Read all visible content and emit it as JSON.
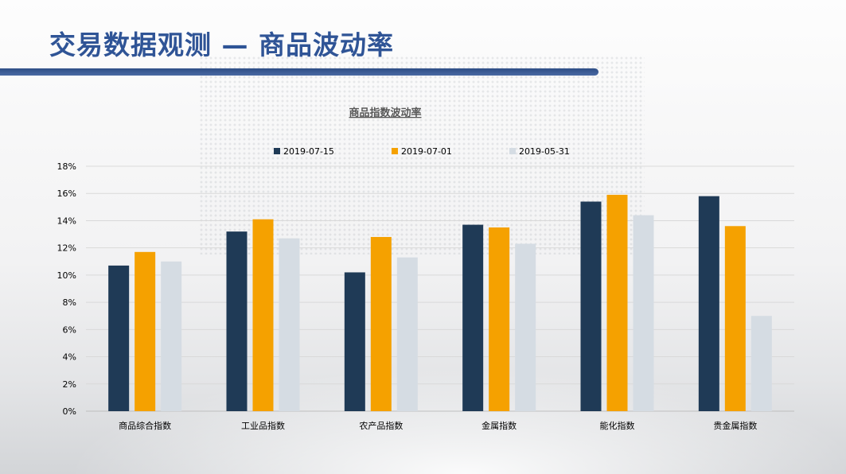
{
  "slide": {
    "title": "交易数据观测 — 商品波动率"
  },
  "colors": {
    "title": "#2f5496",
    "series": [
      "#1f3a56",
      "#f5a100",
      "#d5dce3"
    ],
    "grid": "#d9d9d9",
    "axis_text": "#000000"
  },
  "chart_data": {
    "type": "bar",
    "title": "商品指数波动率",
    "categories": [
      "商品综合指数",
      "工业品指数",
      "农产品指数",
      "金属指数",
      "能化指数",
      "贵金属指数"
    ],
    "series": [
      {
        "name": "2019-07-15",
        "values": [
          10.7,
          13.2,
          10.2,
          13.7,
          15.4,
          15.8
        ]
      },
      {
        "name": "2019-07-01",
        "values": [
          11.7,
          14.1,
          12.8,
          13.5,
          15.9,
          13.6
        ]
      },
      {
        "name": "2019-05-31",
        "values": [
          11.0,
          12.7,
          11.3,
          12.3,
          14.4,
          7.0
        ]
      }
    ],
    "ylim": [
      0,
      18
    ],
    "yticks": [
      "0%",
      "2%",
      "4%",
      "6%",
      "8%",
      "10%",
      "12%",
      "14%",
      "16%",
      "18%"
    ],
    "grid": true,
    "legend_position": "top"
  }
}
